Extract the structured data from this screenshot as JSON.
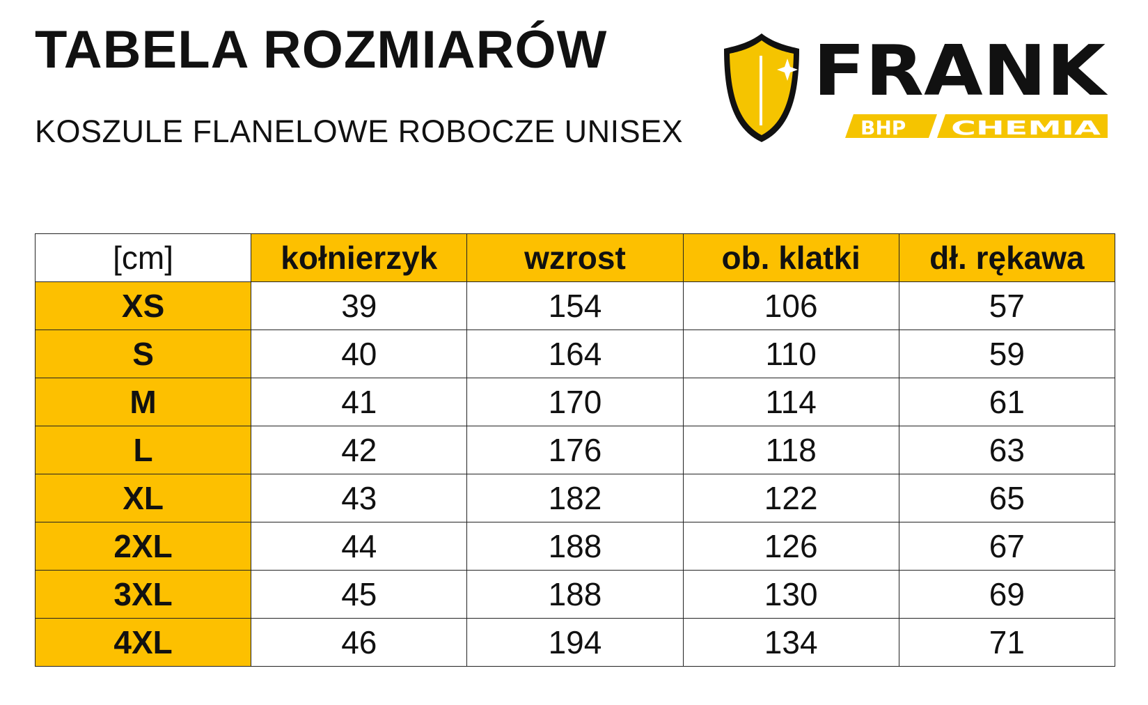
{
  "header": {
    "title": "TABELA ROZMIARÓW",
    "subtitle": "KOSZULE FLANELOWE ROBOCZE UNISEX"
  },
  "logo": {
    "brand": "FRANK",
    "tagline_left": "BHP",
    "tagline_right": "CHEMIA",
    "icon": "shield-icon"
  },
  "colors": {
    "accent": "#FDC000",
    "text": "#111111"
  },
  "table": {
    "unit": "[cm]",
    "columns": [
      "kołnierzyk",
      "wzrost",
      "ob. klatki",
      "dł. rękawa"
    ],
    "rows": [
      {
        "size": "XS",
        "values": [
          "39",
          "154",
          "106",
          "57"
        ]
      },
      {
        "size": "S",
        "values": [
          "40",
          "164",
          "110",
          "59"
        ]
      },
      {
        "size": "M",
        "values": [
          "41",
          "170",
          "114",
          "61"
        ]
      },
      {
        "size": "L",
        "values": [
          "42",
          "176",
          "118",
          "63"
        ]
      },
      {
        "size": "XL",
        "values": [
          "43",
          "182",
          "122",
          "65"
        ]
      },
      {
        "size": "2XL",
        "values": [
          "44",
          "188",
          "126",
          "67"
        ]
      },
      {
        "size": "3XL",
        "values": [
          "45",
          "188",
          "130",
          "69"
        ]
      },
      {
        "size": "4XL",
        "values": [
          "46",
          "194",
          "134",
          "71"
        ]
      }
    ]
  }
}
